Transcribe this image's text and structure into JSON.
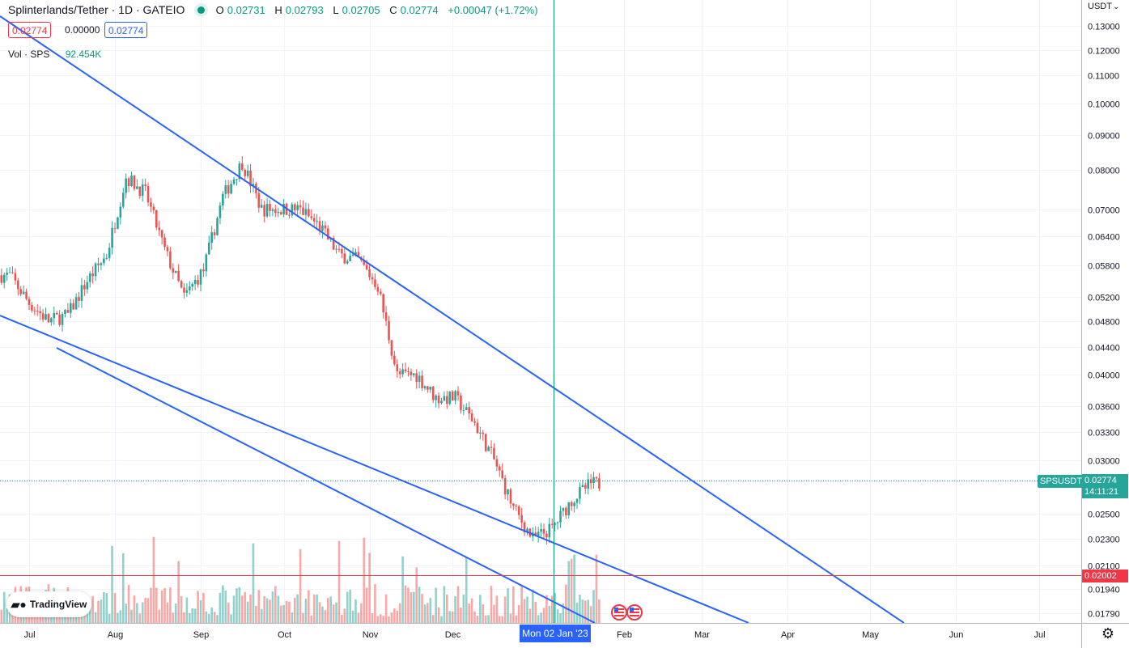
{
  "header": {
    "symbol_title": "Splinterlands/Tether · 1D · GATEIO",
    "ohlc": [
      {
        "label": "O",
        "value": "0.02731"
      },
      {
        "label": "H",
        "value": "0.02793"
      },
      {
        "label": "L",
        "value": "0.02705"
      },
      {
        "label": "C",
        "value": "0.02774"
      }
    ],
    "change": "+0.00047 (+1.72%)",
    "bid": "0.02774",
    "spread": "0.00000",
    "ask": "0.02774"
  },
  "volume_legend": {
    "label": "Vol · SPS",
    "value": "92.454K"
  },
  "price_scale": {
    "currency": "USDT",
    "current_symbol": "SPSUSDT",
    "current_price": "0.02774",
    "countdown": "14:11:21",
    "marker_price": "0.02002"
  },
  "crosshair_label": "Mon 02 Jan '23",
  "logo_text": "TradingView",
  "colors": {
    "up": "#26a69a",
    "down": "#ef5350",
    "trendline": "#2962ff",
    "marker": "#f23645"
  },
  "chart_data": {
    "type": "candlestick",
    "title": "Splinterlands/Tether · 1D · GATEIO",
    "y_scale": "log",
    "ylim": [
      0.0173,
      0.142
    ],
    "y_ticks": [
      "0.13000",
      "0.12000",
      "0.11000",
      "0.10000",
      "0.09000",
      "0.08000",
      "0.07000",
      "0.06400",
      "0.05800",
      "0.05200",
      "0.04800",
      "0.04400",
      "0.04000",
      "0.03600",
      "0.03300",
      "0.03000",
      "0.02500",
      "0.02300",
      "0.02100",
      "0.01940",
      "0.01790"
    ],
    "x_ticks": [
      "Jul",
      "Aug",
      "Sep",
      "Oct",
      "Nov",
      "Dec",
      "Feb",
      "Mar",
      "Apr",
      "May",
      "Jun",
      "Jul"
    ],
    "candles_weekly_close": [
      {
        "date": "2022-06-24",
        "close": 0.056
      },
      {
        "date": "2022-07-01",
        "close": 0.051
      },
      {
        "date": "2022-07-08",
        "close": 0.048
      },
      {
        "date": "2022-07-15",
        "close": 0.049
      },
      {
        "date": "2022-07-22",
        "close": 0.055
      },
      {
        "date": "2022-07-29",
        "close": 0.06
      },
      {
        "date": "2022-08-05",
        "close": 0.078
      },
      {
        "date": "2022-08-12",
        "close": 0.074
      },
      {
        "date": "2022-08-19",
        "close": 0.061
      },
      {
        "date": "2022-08-26",
        "close": 0.052
      },
      {
        "date": "2022-09-02",
        "close": 0.057
      },
      {
        "date": "2022-09-09",
        "close": 0.073
      },
      {
        "date": "2022-09-16",
        "close": 0.082
      },
      {
        "date": "2022-09-23",
        "close": 0.07
      },
      {
        "date": "2022-09-30",
        "close": 0.07
      },
      {
        "date": "2022-10-07",
        "close": 0.07
      },
      {
        "date": "2022-10-14",
        "close": 0.066
      },
      {
        "date": "2022-10-21",
        "close": 0.06
      },
      {
        "date": "2022-10-28",
        "close": 0.059
      },
      {
        "date": "2022-11-04",
        "close": 0.054
      },
      {
        "date": "2022-11-11",
        "close": 0.04
      },
      {
        "date": "2022-11-18",
        "close": 0.04
      },
      {
        "date": "2022-11-25",
        "close": 0.037
      },
      {
        "date": "2022-12-02",
        "close": 0.037
      },
      {
        "date": "2022-12-09",
        "close": 0.034
      },
      {
        "date": "2022-12-16",
        "close": 0.03
      },
      {
        "date": "2022-12-23",
        "close": 0.0255
      },
      {
        "date": "2022-12-30",
        "close": 0.023
      },
      {
        "date": "2023-01-06",
        "close": 0.0238
      },
      {
        "date": "2023-01-13",
        "close": 0.0262
      },
      {
        "date": "2023-01-20",
        "close": 0.0277
      }
    ],
    "last_close": 0.02774
  }
}
